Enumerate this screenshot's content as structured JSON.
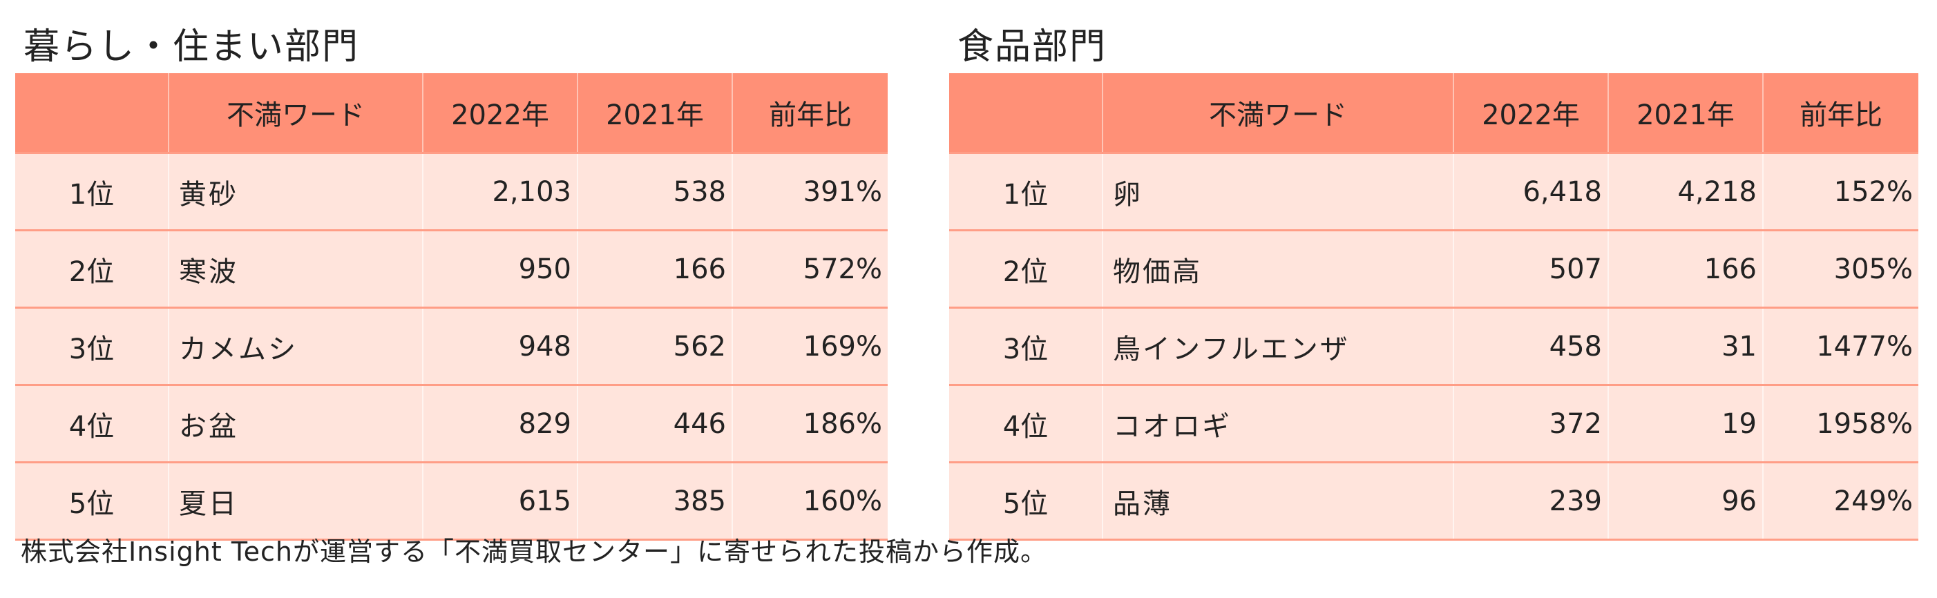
{
  "left_panel": {
    "title": "暮らし・住まい部門",
    "headers": [
      "",
      "不満ワード",
      "2022年",
      "2021年",
      "前年比"
    ],
    "rows": [
      {
        "rank": "1位",
        "word": "黄砂",
        "y2022": "2,103",
        "y2021": "538",
        "ratio": "391%"
      },
      {
        "rank": "2位",
        "word": "寒波",
        "y2022": "950",
        "y2021": "166",
        "ratio": "572%"
      },
      {
        "rank": "3位",
        "word": "カメムシ",
        "y2022": "948",
        "y2021": "562",
        "ratio": "169%"
      },
      {
        "rank": "4位",
        "word": "お盆",
        "y2022": "829",
        "y2021": "446",
        "ratio": "186%"
      },
      {
        "rank": "5位",
        "word": "夏日",
        "y2022": "615",
        "y2021": "385",
        "ratio": "160%"
      }
    ]
  },
  "right_panel": {
    "title": "食品部門",
    "headers": [
      "",
      "不満ワード",
      "2022年",
      "2021年",
      "前年比"
    ],
    "rows": [
      {
        "rank": "1位",
        "word": "卵",
        "y2022": "6,418",
        "y2021": "4,218",
        "ratio": "152%"
      },
      {
        "rank": "2位",
        "word": "物価高",
        "y2022": "507",
        "y2021": "166",
        "ratio": "305%"
      },
      {
        "rank": "3位",
        "word": "鳥インフルエンザ",
        "y2022": "458",
        "y2021": "31",
        "ratio": "1477%"
      },
      {
        "rank": "4位",
        "word": "コオロギ",
        "y2022": "372",
        "y2021": "19",
        "ratio": "1958%"
      },
      {
        "rank": "5位",
        "word": "品薄",
        "y2022": "239",
        "y2021": "96",
        "ratio": "249%"
      }
    ]
  },
  "footnote": "株式会社Insight Techが運営する「不満買取センター」に寄せられた投稿から作成。",
  "colors": {
    "header_bg": "#ff9077",
    "row_bg": "#ffe4dc",
    "row_divider": "#ff9d86"
  }
}
